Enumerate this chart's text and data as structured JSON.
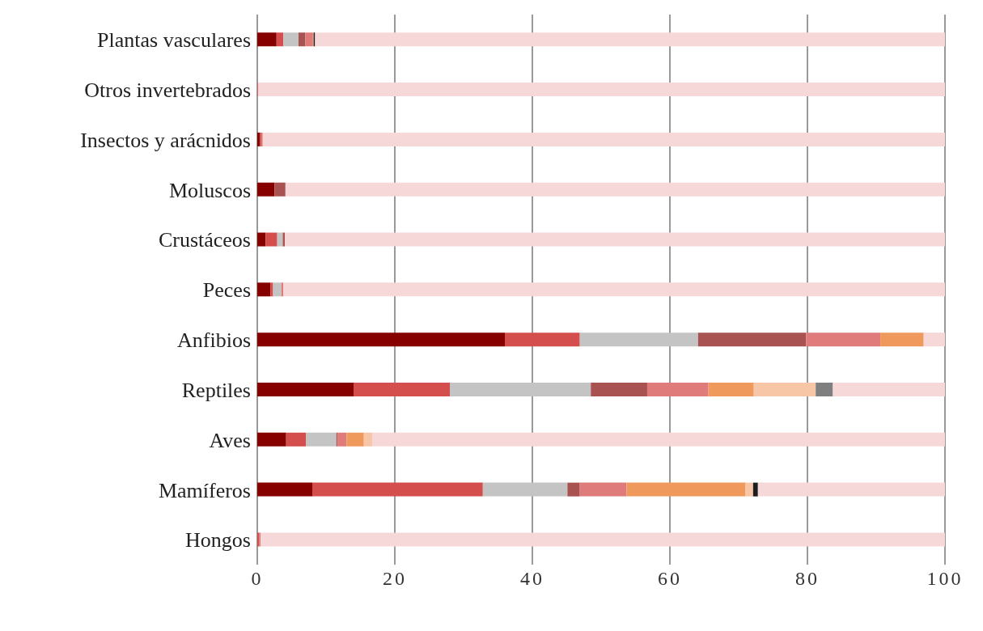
{
  "chart_data": {
    "type": "bar",
    "orientation": "horizontal",
    "stacked": true,
    "categories": [
      "Plantas vasculares",
      "Otros invertebrados",
      "Insectos y arácnidos",
      "Moluscos",
      "Crustáceos",
      "Peces",
      "Anfibios",
      "Reptiles",
      "Aves",
      "Mamíferos",
      "Hongos"
    ],
    "series": [
      {
        "color": "#870000",
        "values": [
          2.8,
          0,
          0.4,
          2.5,
          1.2,
          1.9,
          36.0,
          14.0,
          4.2,
          8.0,
          0
        ]
      },
      {
        "color": "#d44e4e",
        "values": [
          1.0,
          0.1,
          0.2,
          0,
          1.7,
          0.4,
          10.9,
          14.0,
          2.9,
          24.8,
          0.3
        ]
      },
      {
        "color": "#c4c4c4",
        "values": [
          2.2,
          0,
          0,
          0,
          0.8,
          1.2,
          17.2,
          20.5,
          4.4,
          12.3,
          0
        ]
      },
      {
        "color": "#a85252",
        "values": [
          1.0,
          0,
          0,
          1.6,
          0.3,
          0,
          15.7,
          8.2,
          0.2,
          1.8,
          0
        ]
      },
      {
        "color": "#df7b7b",
        "values": [
          1.1,
          0,
          0.2,
          0,
          0,
          0.3,
          10.8,
          8.9,
          1.3,
          6.8,
          0.2
        ]
      },
      {
        "color": "#f0995d",
        "values": [
          0.1,
          0,
          0,
          0,
          0,
          0,
          6.3,
          6.6,
          2.5,
          17.3,
          0
        ]
      },
      {
        "color": "#f7c6a6",
        "values": [
          0,
          0,
          0,
          0,
          0,
          0,
          0,
          9.0,
          1.2,
          1.1,
          0
        ]
      },
      {
        "color": "#7f7f7f",
        "values": [
          0,
          0,
          0,
          0,
          0,
          0,
          0,
          2.5,
          0,
          0,
          0
        ]
      },
      {
        "color": "#1e1e1e",
        "values": [
          0.2,
          0,
          0,
          0,
          0,
          0,
          0,
          0,
          0,
          0.7,
          0
        ]
      },
      {
        "color": "#f6d8d9",
        "values": [
          91.6,
          99.9,
          99.2,
          95.9,
          96.0,
          96.2,
          3.1,
          16.3,
          83.3,
          27.2,
          99.5
        ]
      }
    ],
    "xlim": [
      0,
      100
    ],
    "xticks": [
      0,
      20,
      40,
      60,
      80,
      100
    ],
    "grid": "x",
    "legend": false
  }
}
